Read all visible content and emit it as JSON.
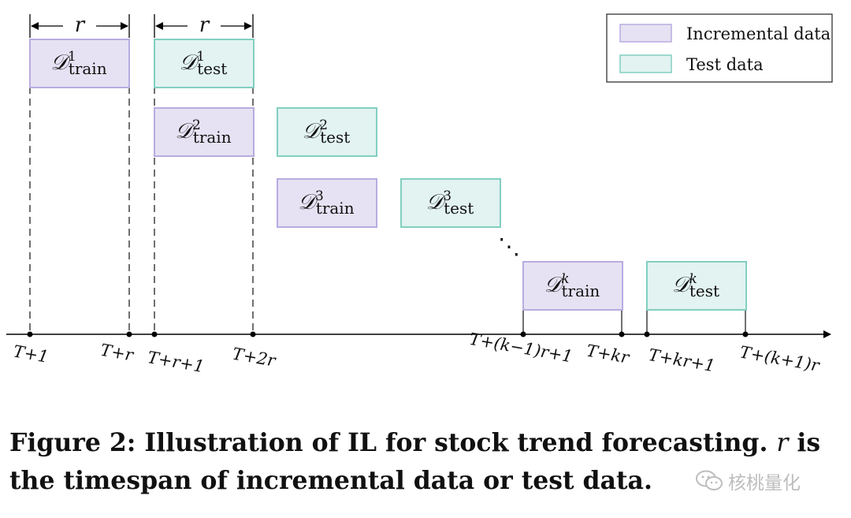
{
  "legend": {
    "items": [
      {
        "label": "Incremental data",
        "color": "#e6e2f3",
        "stroke": "#b8ace0"
      },
      {
        "label": "Test data",
        "color": "#e2f3f1",
        "stroke": "#82cfc1"
      }
    ]
  },
  "span_label": "r",
  "blocks": [
    {
      "symbol": "𝒟",
      "sup": "1",
      "sub": "train",
      "kind": "train"
    },
    {
      "symbol": "𝒟",
      "sup": "1",
      "sub": "test",
      "kind": "test"
    },
    {
      "symbol": "𝒟",
      "sup": "2",
      "sub": "train",
      "kind": "train"
    },
    {
      "symbol": "𝒟",
      "sup": "2",
      "sub": "test",
      "kind": "test"
    },
    {
      "symbol": "𝒟",
      "sup": "3",
      "sub": "train",
      "kind": "train"
    },
    {
      "symbol": "𝒟",
      "sup": "3",
      "sub": "test",
      "kind": "test"
    },
    {
      "symbol": "𝒟",
      "sup": "k",
      "sub": "train",
      "kind": "train"
    },
    {
      "symbol": "𝒟",
      "sup": "k",
      "sub": "test",
      "kind": "test"
    }
  ],
  "ellipsis": "⋱",
  "ticks": [
    "T+1",
    "T+r",
    "T+r+1",
    "T+2r",
    "T+(k−1)r+1",
    "T+kr",
    "T+kr+1",
    "T+(k+1)r"
  ],
  "caption": {
    "part1": "Figure 2: Illustration of IL for stock trend forecasting. ",
    "var": "r",
    "part2": " is the timespan of incremental data or test data."
  },
  "watermark": "核桃量化"
}
